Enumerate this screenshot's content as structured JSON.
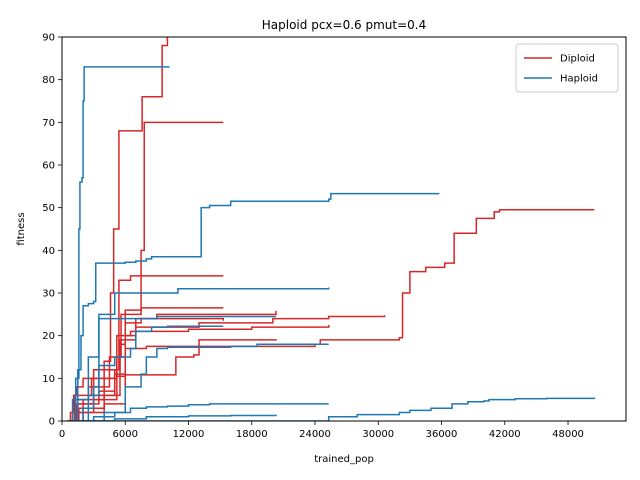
{
  "chart_data": {
    "type": "line",
    "title": "Haploid pcx=0.6 pmut=0.4",
    "xlabel": "trained_pop",
    "ylabel": "fitness",
    "xlim": [
      0,
      53500
    ],
    "ylim": [
      0,
      90
    ],
    "xticks": [
      0,
      6000,
      12000,
      18000,
      24000,
      30000,
      36000,
      42000,
      48000
    ],
    "yticks": [
      0,
      10,
      20,
      30,
      40,
      50,
      60,
      70,
      80,
      90
    ],
    "grid": false,
    "legend_position": "top-right",
    "colors": {
      "Diploid": "#d62728",
      "Haploid": "#1f77b4"
    },
    "series": [
      {
        "name": "Diploid",
        "runs": [
          [
            [
              500,
              0
            ],
            [
              800,
              2
            ],
            [
              1100,
              6
            ],
            [
              1400,
              8
            ],
            [
              2000,
              10
            ],
            [
              3000,
              12
            ],
            [
              4000,
              14
            ],
            [
              4600,
              30
            ],
            [
              4900,
              45
            ],
            [
              5200,
              45
            ],
            [
              5400,
              68
            ],
            [
              7000,
              68
            ],
            [
              7600,
              76
            ],
            [
              9200,
              76
            ],
            [
              9500,
              88
            ],
            [
              10000,
              90
            ]
          ],
          [
            [
              700,
              0
            ],
            [
              1200,
              5
            ],
            [
              2500,
              8
            ],
            [
              4500,
              15
            ],
            [
              5600,
              25
            ],
            [
              7500,
              40
            ],
            [
              7800,
              70
            ],
            [
              15300,
              70
            ]
          ],
          [
            [
              800,
              0
            ],
            [
              1500,
              4
            ],
            [
              3500,
              7
            ],
            [
              5000,
              12
            ],
            [
              5400,
              33
            ],
            [
              6500,
              34
            ],
            [
              15300,
              34
            ]
          ],
          [
            [
              900,
              0
            ],
            [
              1600,
              3
            ],
            [
              4000,
              6
            ],
            [
              5500,
              18
            ],
            [
              6000,
              26
            ],
            [
              7500,
              26.5
            ],
            [
              15300,
              26.5
            ]
          ],
          [
            [
              600,
              0
            ],
            [
              1300,
              3
            ],
            [
              3000,
              5
            ],
            [
              5200,
              15
            ],
            [
              6000,
              23
            ],
            [
              7500,
              24
            ],
            [
              15300,
              23.5
            ]
          ],
          [
            [
              700,
              0
            ],
            [
              1500,
              2
            ],
            [
              4000,
              4
            ],
            [
              6000,
              20
            ],
            [
              7000,
              24
            ],
            [
              9000,
              25
            ],
            [
              20300,
              25.8
            ]
          ],
          [
            [
              600,
              0
            ],
            [
              1200,
              6
            ],
            [
              2800,
              10
            ],
            [
              5200,
              10.5
            ],
            [
              6000,
              10.8
            ],
            [
              10500,
              10.8
            ],
            [
              10800,
              15
            ],
            [
              12500,
              15.5
            ],
            [
              13000,
              19
            ],
            [
              20300,
              19.2
            ]
          ],
          [
            [
              800,
              0
            ],
            [
              1400,
              4
            ],
            [
              3000,
              10
            ],
            [
              5200,
              20
            ],
            [
              6500,
              21
            ],
            [
              12000,
              21.5
            ],
            [
              18000,
              22
            ],
            [
              25300,
              22.5
            ]
          ],
          [
            [
              900,
              0
            ],
            [
              2000,
              5
            ],
            [
              4000,
              12
            ],
            [
              5500,
              19
            ],
            [
              7000,
              22
            ],
            [
              13000,
              23
            ],
            [
              20000,
              24
            ],
            [
              25300,
              24.5
            ],
            [
              30600,
              24.8
            ]
          ],
          [
            [
              500,
              0
            ],
            [
              1000,
              2
            ],
            [
              3000,
              6
            ],
            [
              5000,
              11
            ],
            [
              6000,
              17
            ],
            [
              8000,
              17.5
            ],
            [
              12000,
              17.5
            ],
            [
              24000,
              18
            ],
            [
              24500,
              19
            ],
            [
              32000,
              19.5
            ],
            [
              32300,
              30
            ],
            [
              32700,
              30
            ],
            [
              33000,
              35
            ],
            [
              34500,
              36
            ],
            [
              36000,
              36
            ],
            [
              36300,
              37
            ],
            [
              37000,
              37
            ],
            [
              37200,
              44
            ],
            [
              39000,
              44
            ],
            [
              39300,
              47.5
            ],
            [
              40800,
              47.5
            ],
            [
              41000,
              49
            ],
            [
              41500,
              49.5
            ],
            [
              50500,
              49.5
            ]
          ]
        ]
      },
      {
        "name": "Haploid",
        "runs": [
          [
            [
              800,
              0
            ],
            [
              1300,
              10
            ],
            [
              1600,
              45
            ],
            [
              1700,
              56
            ],
            [
              1900,
              57
            ],
            [
              2000,
              75
            ],
            [
              2100,
              83
            ],
            [
              10200,
              83
            ]
          ],
          [
            [
              500,
              0
            ],
            [
              1000,
              5
            ],
            [
              1500,
              12
            ],
            [
              1800,
              20
            ],
            [
              2000,
              27
            ],
            [
              2500,
              27.5
            ],
            [
              3000,
              28
            ],
            [
              3200,
              37
            ],
            [
              6000,
              37.2
            ],
            [
              7000,
              37.5
            ],
            [
              8000,
              38
            ],
            [
              8500,
              38.5
            ],
            [
              13000,
              38.5
            ],
            [
              13200,
              50
            ],
            [
              14000,
              50.5
            ],
            [
              16000,
              51.5
            ],
            [
              25300,
              52
            ],
            [
              25500,
              53.3
            ],
            [
              35800,
              53.3
            ]
          ],
          [
            [
              900,
              0
            ],
            [
              1500,
              5
            ],
            [
              2500,
              15
            ],
            [
              3500,
              25
            ],
            [
              5000,
              30
            ],
            [
              10000,
              30
            ],
            [
              11000,
              31
            ],
            [
              25300,
              31.3
            ]
          ],
          [
            [
              1000,
              0
            ],
            [
              2000,
              3
            ],
            [
              3000,
              8
            ],
            [
              3500,
              24
            ],
            [
              9000,
              24.5
            ],
            [
              20300,
              24.5
            ]
          ],
          [
            [
              1200,
              0
            ],
            [
              2500,
              6
            ],
            [
              3500,
              13
            ],
            [
              5000,
              15
            ],
            [
              6500,
              17
            ],
            [
              7000,
              21
            ],
            [
              8500,
              22
            ],
            [
              10000,
              22.2
            ],
            [
              15300,
              22.2
            ]
          ],
          [
            [
              2000,
              0
            ],
            [
              4000,
              2
            ],
            [
              6000,
              8
            ],
            [
              7500,
              11
            ],
            [
              8000,
              15
            ],
            [
              9000,
              17
            ],
            [
              10000,
              17.3
            ],
            [
              16000,
              17.5
            ],
            [
              18500,
              18
            ],
            [
              25300,
              18
            ]
          ],
          [
            [
              1500,
              0
            ],
            [
              3000,
              1
            ],
            [
              5000,
              2
            ],
            [
              6500,
              3
            ],
            [
              8000,
              3.3
            ],
            [
              10000,
              3.5
            ],
            [
              12000,
              3.8
            ],
            [
              14000,
              4
            ],
            [
              18000,
              4
            ],
            [
              25300,
              4
            ]
          ],
          [
            [
              2000,
              0
            ],
            [
              5000,
              0.5
            ],
            [
              8000,
              1
            ],
            [
              12000,
              1.2
            ],
            [
              16000,
              1.3
            ],
            [
              20300,
              1.5
            ]
          ],
          [
            [
              3000,
              0
            ],
            [
              10000,
              0
            ],
            [
              20000,
              0
            ],
            [
              24500,
              0
            ],
            [
              25300,
              1
            ],
            [
              28000,
              1.5
            ],
            [
              30000,
              1.5
            ],
            [
              31500,
              1.5
            ],
            [
              32000,
              2
            ],
            [
              33000,
              2.5
            ],
            [
              35000,
              3
            ],
            [
              37000,
              4
            ],
            [
              38500,
              4.5
            ],
            [
              40000,
              4.7
            ],
            [
              40500,
              5
            ],
            [
              43000,
              5.2
            ],
            [
              46000,
              5.3
            ],
            [
              50500,
              5.5
            ]
          ]
        ]
      }
    ]
  }
}
